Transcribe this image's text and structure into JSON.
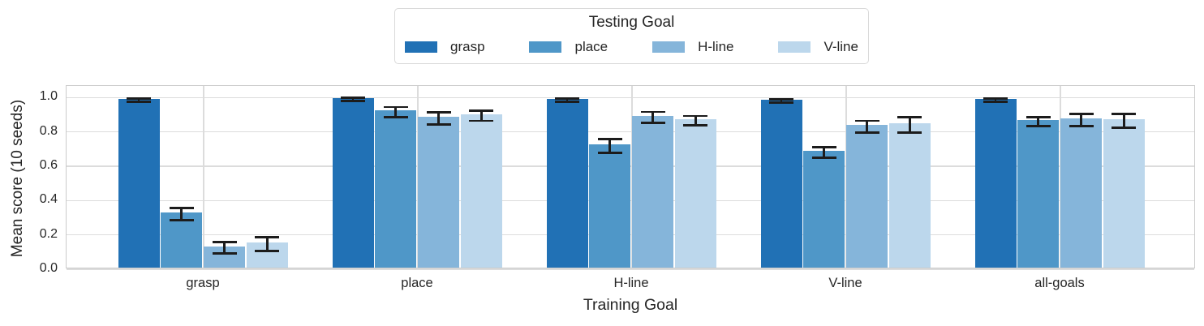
{
  "chart_data": {
    "type": "bar",
    "legend_title": "Testing Goal",
    "xlabel": "Training Goal",
    "ylabel": "Mean score (10 seeds)",
    "categories": [
      "grasp",
      "place",
      "H-line",
      "V-line",
      "all-goals"
    ],
    "series": [
      {
        "name": "grasp",
        "color": "#2171b5",
        "values": [
          0.985,
          0.99,
          0.985,
          0.98,
          0.985
        ],
        "errors": [
          0.01,
          0.008,
          0.008,
          0.01,
          0.008
        ]
      },
      {
        "name": "place",
        "color": "#4f97c8",
        "values": [
          0.32,
          0.915,
          0.72,
          0.68,
          0.86
        ],
        "errors": [
          0.035,
          0.03,
          0.04,
          0.03,
          0.025
        ]
      },
      {
        "name": "H-line",
        "color": "#85b5da",
        "values": [
          0.125,
          0.88,
          0.885,
          0.83,
          0.87
        ],
        "errors": [
          0.032,
          0.035,
          0.032,
          0.035,
          0.035
        ]
      },
      {
        "name": "V-line",
        "color": "#bcd7ec",
        "values": [
          0.145,
          0.895,
          0.865,
          0.84,
          0.865
        ],
        "errors": [
          0.04,
          0.03,
          0.028,
          0.045,
          0.04
        ]
      }
    ],
    "yticks": [
      0.0,
      0.2,
      0.4,
      0.6,
      0.8,
      1.0
    ],
    "ytick_labels": [
      "0.0",
      "0.2",
      "0.4",
      "0.6",
      "0.8",
      "1.0"
    ],
    "ylim": [
      0,
      1.068
    ],
    "grid": true,
    "error_bars": true,
    "legend_position": "top-center",
    "colors": {
      "grid": "#dcdcdc",
      "spine": "#cbcbcb",
      "error_bar": "#1c1c1c",
      "text": "#262626"
    }
  }
}
